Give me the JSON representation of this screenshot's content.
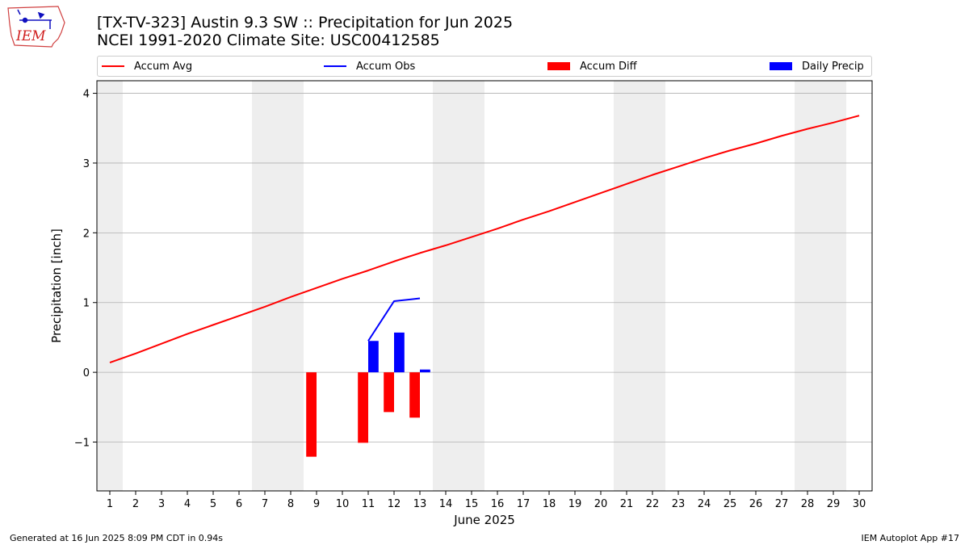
{
  "header": {
    "title_line1": "[TX-TV-323] Austin 9.3 SW :: Precipitation for Jun 2025",
    "title_line2": "NCEI 1991-2020 Climate Site: USC00412585",
    "logo_text": "IEM"
  },
  "footer": {
    "left": "Generated at 16 Jun 2025 8:09 PM CDT in 0.94s",
    "right": "IEM Autoplot App #17"
  },
  "colors": {
    "accum_avg": "#ff0000",
    "accum_obs": "#0000ff",
    "accum_diff": "#ff0000",
    "daily_precip": "#0000ff",
    "weekend_shade": "#eeeeee",
    "grid": "#b0b0b0"
  },
  "chart_data": {
    "type": "line",
    "xlabel": "June 2025",
    "ylabel": "Precipitation [inch]",
    "xlim": [
      0.5,
      30.5
    ],
    "ylim": [
      -1.7,
      4.18
    ],
    "yticks": [
      -1,
      0,
      1,
      2,
      3,
      4
    ],
    "ytick_labels": [
      "−1",
      "0",
      "1",
      "2",
      "3",
      "4"
    ],
    "xticks": [
      1,
      2,
      3,
      4,
      5,
      6,
      7,
      8,
      9,
      10,
      11,
      12,
      13,
      14,
      15,
      16,
      17,
      18,
      19,
      20,
      21,
      22,
      23,
      24,
      25,
      26,
      27,
      28,
      29,
      30
    ],
    "grid": "horizontal",
    "legend_placement": "top",
    "weekend_shading": [
      [
        0.5,
        1.5
      ],
      [
        6.5,
        8.5
      ],
      [
        13.5,
        15.5
      ],
      [
        20.5,
        22.5
      ],
      [
        27.5,
        29.5
      ]
    ],
    "series": [
      {
        "name": "Accum Avg",
        "kind": "line",
        "x": [
          1,
          2,
          3,
          4,
          5,
          6,
          7,
          8,
          9,
          10,
          11,
          12,
          13,
          14,
          15,
          16,
          17,
          18,
          19,
          20,
          21,
          22,
          23,
          24,
          25,
          26,
          27,
          28,
          29,
          30
        ],
        "values": [
          0.14,
          0.27,
          0.41,
          0.55,
          0.68,
          0.81,
          0.94,
          1.08,
          1.21,
          1.34,
          1.46,
          1.59,
          1.71,
          1.82,
          1.94,
          2.06,
          2.19,
          2.31,
          2.44,
          2.57,
          2.7,
          2.83,
          2.95,
          3.07,
          3.18,
          3.28,
          3.39,
          3.49,
          3.58,
          3.68
        ]
      },
      {
        "name": "Accum Obs",
        "kind": "line",
        "x": [
          11,
          12,
          13
        ],
        "values": [
          0.45,
          1.02,
          1.06
        ]
      },
      {
        "name": "Accum Diff",
        "kind": "bar",
        "x": [
          9,
          11,
          12,
          13
        ],
        "values": [
          -1.21,
          -1.01,
          -0.57,
          -0.65
        ]
      },
      {
        "name": "Daily Precip",
        "kind": "bar",
        "x": [
          11,
          12,
          13
        ],
        "values": [
          0.45,
          0.57,
          0.04
        ]
      }
    ]
  }
}
